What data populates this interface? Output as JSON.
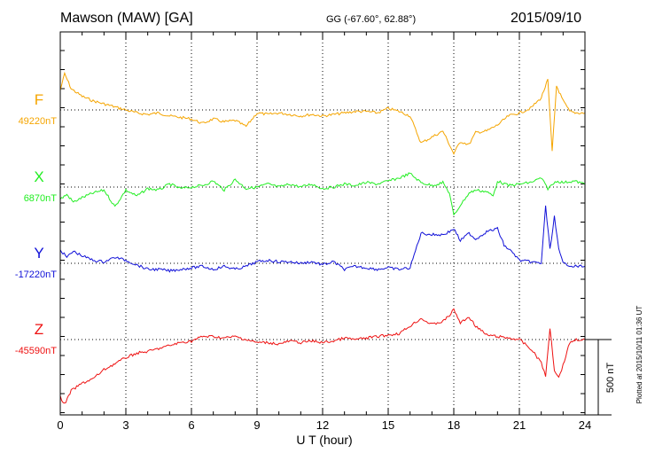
{
  "header": {
    "title": "Mawson (MAW)  [GA]",
    "coords": "GG (-67.60°,  62.88°)",
    "date": "2015/09/10"
  },
  "plotted_note": "Plotted at 2015/10/11 01:36 UT",
  "chart_data": {
    "type": "line",
    "xlabel": "U T (hour)",
    "x_ticks": [
      "0",
      "3",
      "6",
      "9",
      "12",
      "15",
      "18",
      "21",
      "24"
    ],
    "xlim": [
      0,
      24
    ],
    "grid": true,
    "scale_bar": {
      "label": "500 nT",
      "value_nT": 500
    },
    "series": [
      {
        "name": "F",
        "baseline_label": "49220nT",
        "baseline_nT": 49220,
        "color": "#f5a500",
        "points": [
          [
            0,
            130
          ],
          [
            0.2,
            240
          ],
          [
            0.5,
            140
          ],
          [
            1,
            90
          ],
          [
            1.5,
            60
          ],
          [
            2,
            40
          ],
          [
            2.5,
            20
          ],
          [
            3,
            0
          ],
          [
            3.5,
            -20
          ],
          [
            4,
            -30
          ],
          [
            4.5,
            -20
          ],
          [
            5,
            -40
          ],
          [
            5.5,
            -50
          ],
          [
            6,
            -60
          ],
          [
            6.5,
            -90
          ],
          [
            7,
            -60
          ],
          [
            7.5,
            -80
          ],
          [
            8,
            -70
          ],
          [
            8.5,
            -110
          ],
          [
            9,
            -20
          ],
          [
            9.5,
            -30
          ],
          [
            10,
            -20
          ],
          [
            10.5,
            -30
          ],
          [
            11,
            -40
          ],
          [
            11.5,
            -30
          ],
          [
            12,
            -40
          ],
          [
            12.5,
            -30
          ],
          [
            13,
            -20
          ],
          [
            13.5,
            -10
          ],
          [
            14,
            -10
          ],
          [
            14.5,
            -20
          ],
          [
            15,
            10
          ],
          [
            15.5,
            -10
          ],
          [
            16,
            -40
          ],
          [
            16.5,
            -220
          ],
          [
            17,
            -180
          ],
          [
            17.5,
            -140
          ],
          [
            17.7,
            -200
          ],
          [
            18,
            -290
          ],
          [
            18.3,
            -210
          ],
          [
            18.7,
            -230
          ],
          [
            19,
            -150
          ],
          [
            19.5,
            -140
          ],
          [
            20,
            -100
          ],
          [
            20.5,
            -40
          ],
          [
            21,
            -20
          ],
          [
            21.5,
            10
          ],
          [
            22,
            80
          ],
          [
            22.3,
            200
          ],
          [
            22.5,
            -280
          ],
          [
            22.7,
            160
          ],
          [
            23,
            60
          ],
          [
            23.3,
            -10
          ],
          [
            23.6,
            -20
          ],
          [
            24,
            -20
          ]
        ]
      },
      {
        "name": "X",
        "baseline_label": "6870nT",
        "baseline_nT": 6870,
        "color": "#22ee22",
        "points": [
          [
            0,
            -80
          ],
          [
            0.3,
            -50
          ],
          [
            0.6,
            -100
          ],
          [
            1,
            -70
          ],
          [
            1.5,
            -40
          ],
          [
            2,
            -20
          ],
          [
            2.5,
            -130
          ],
          [
            3,
            -20
          ],
          [
            3.5,
            -60
          ],
          [
            4,
            -10
          ],
          [
            4.5,
            -20
          ],
          [
            5,
            20
          ],
          [
            5.5,
            -10
          ],
          [
            6,
            0
          ],
          [
            6.5,
            10
          ],
          [
            7,
            40
          ],
          [
            7.5,
            -20
          ],
          [
            8,
            50
          ],
          [
            8.5,
            -10
          ],
          [
            9,
            0
          ],
          [
            9.5,
            20
          ],
          [
            10,
            0
          ],
          [
            10.5,
            20
          ],
          [
            11,
            0
          ],
          [
            11.5,
            20
          ],
          [
            12,
            -10
          ],
          [
            12.5,
            0
          ],
          [
            13,
            20
          ],
          [
            13.5,
            10
          ],
          [
            14,
            30
          ],
          [
            14.5,
            20
          ],
          [
            15,
            40
          ],
          [
            15.5,
            60
          ],
          [
            16,
            90
          ],
          [
            16.5,
            30
          ],
          [
            17,
            10
          ],
          [
            17.5,
            30
          ],
          [
            17.8,
            -40
          ],
          [
            18,
            -190
          ],
          [
            18.3,
            -120
          ],
          [
            18.7,
            -40
          ],
          [
            19,
            -20
          ],
          [
            19.5,
            -30
          ],
          [
            19.8,
            -60
          ],
          [
            20,
            40
          ],
          [
            20.5,
            10
          ],
          [
            21,
            20
          ],
          [
            21.5,
            30
          ],
          [
            22,
            60
          ],
          [
            22.3,
            -10
          ],
          [
            22.7,
            40
          ],
          [
            23,
            30
          ],
          [
            23.5,
            40
          ],
          [
            24,
            20
          ]
        ]
      },
      {
        "name": "Y",
        "baseline_label": "-17220nT",
        "baseline_nT": -17220,
        "color": "#1010d8",
        "points": [
          [
            0,
            90
          ],
          [
            0.3,
            40
          ],
          [
            0.6,
            80
          ],
          [
            1,
            50
          ],
          [
            1.5,
            20
          ],
          [
            2,
            10
          ],
          [
            2.5,
            40
          ],
          [
            3,
            20
          ],
          [
            3.5,
            -10
          ],
          [
            4,
            -40
          ],
          [
            4.5,
            -40
          ],
          [
            5,
            -50
          ],
          [
            5.5,
            -40
          ],
          [
            6,
            -30
          ],
          [
            6.5,
            -20
          ],
          [
            7,
            -40
          ],
          [
            7.5,
            -20
          ],
          [
            8,
            -40
          ],
          [
            8.5,
            -20
          ],
          [
            9,
            10
          ],
          [
            9.5,
            20
          ],
          [
            10,
            10
          ],
          [
            10.5,
            10
          ],
          [
            11,
            0
          ],
          [
            11.5,
            10
          ],
          [
            12,
            -10
          ],
          [
            12.5,
            10
          ],
          [
            13,
            -40
          ],
          [
            13.5,
            -20
          ],
          [
            14,
            -30
          ],
          [
            14.5,
            -40
          ],
          [
            15,
            -30
          ],
          [
            15.5,
            -40
          ],
          [
            16,
            -30
          ],
          [
            16.5,
            200
          ],
          [
            17,
            190
          ],
          [
            17.5,
            190
          ],
          [
            17.8,
            210
          ],
          [
            18,
            230
          ],
          [
            18.3,
            150
          ],
          [
            18.7,
            200
          ],
          [
            19,
            160
          ],
          [
            19.5,
            210
          ],
          [
            20,
            230
          ],
          [
            20.3,
            120
          ],
          [
            20.7,
            70
          ],
          [
            21,
            20
          ],
          [
            21.5,
            10
          ],
          [
            22,
            0
          ],
          [
            22.2,
            380
          ],
          [
            22.4,
            90
          ],
          [
            22.6,
            310
          ],
          [
            22.8,
            90
          ],
          [
            23,
            0
          ],
          [
            23.5,
            -20
          ],
          [
            24,
            -20
          ]
        ]
      },
      {
        "name": "Z",
        "baseline_label": "-45590nT",
        "baseline_nT": -45590,
        "color": "#ee1111",
        "points": [
          [
            0,
            -380
          ],
          [
            0.2,
            -430
          ],
          [
            0.5,
            -340
          ],
          [
            1,
            -290
          ],
          [
            1.5,
            -260
          ],
          [
            2,
            -200
          ],
          [
            2.5,
            -160
          ],
          [
            3,
            -120
          ],
          [
            3.5,
            -90
          ],
          [
            4,
            -80
          ],
          [
            4.5,
            -60
          ],
          [
            5,
            -40
          ],
          [
            5.5,
            -20
          ],
          [
            6,
            -10
          ],
          [
            6.5,
            20
          ],
          [
            7,
            20
          ],
          [
            7.5,
            10
          ],
          [
            8,
            20
          ],
          [
            8.5,
            0
          ],
          [
            9,
            -20
          ],
          [
            9.5,
            -20
          ],
          [
            10,
            -30
          ],
          [
            10.5,
            -10
          ],
          [
            11,
            -20
          ],
          [
            11.5,
            -10
          ],
          [
            12,
            -20
          ],
          [
            12.5,
            -10
          ],
          [
            13,
            10
          ],
          [
            13.5,
            0
          ],
          [
            14,
            10
          ],
          [
            14.5,
            20
          ],
          [
            15,
            30
          ],
          [
            15.5,
            40
          ],
          [
            16,
            90
          ],
          [
            16.5,
            140
          ],
          [
            17,
            100
          ],
          [
            17.5,
            120
          ],
          [
            17.8,
            160
          ],
          [
            18,
            200
          ],
          [
            18.3,
            110
          ],
          [
            18.7,
            150
          ],
          [
            19,
            90
          ],
          [
            19.5,
            30
          ],
          [
            20,
            20
          ],
          [
            20.5,
            10
          ],
          [
            21,
            0
          ],
          [
            21.5,
            -60
          ],
          [
            22,
            -150
          ],
          [
            22.2,
            -250
          ],
          [
            22.4,
            80
          ],
          [
            22.6,
            -200
          ],
          [
            22.8,
            -250
          ],
          [
            23,
            -170
          ],
          [
            23.3,
            -20
          ],
          [
            23.6,
            0
          ],
          [
            24,
            0
          ]
        ]
      }
    ]
  }
}
